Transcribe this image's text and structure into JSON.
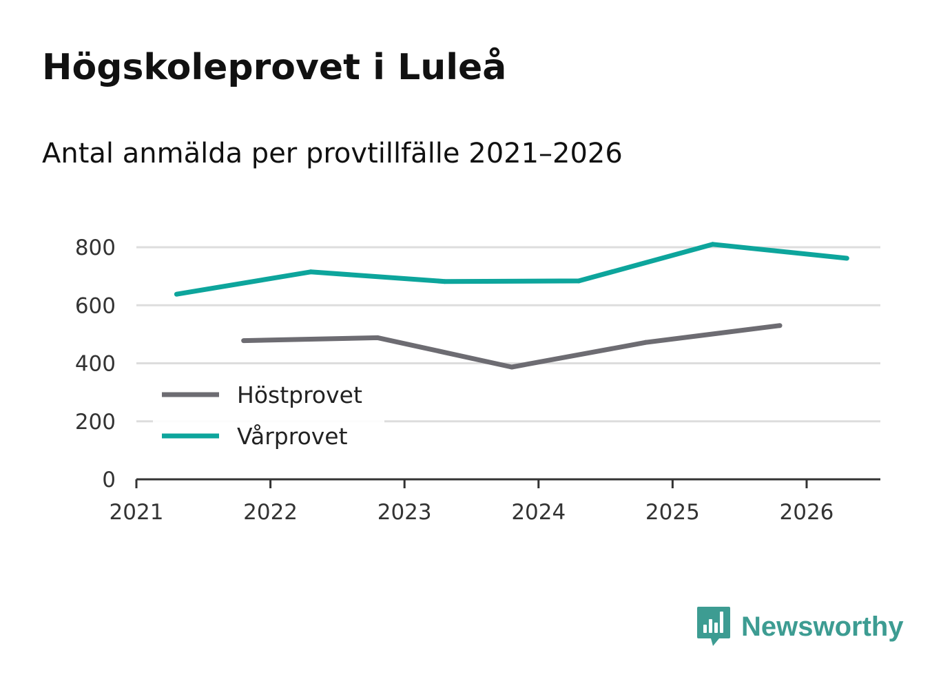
{
  "chart_data": {
    "type": "line",
    "title": "Högskoleprovet i Luleå",
    "subtitle": "Antal anmälda per provtillfälle 2021–2026",
    "xlabel": "",
    "ylabel": "",
    "xlim": [
      2021,
      2026.55
    ],
    "ylim": [
      0,
      800
    ],
    "x_ticks": [
      "2021",
      "2022",
      "2023",
      "2024",
      "2025",
      "2026"
    ],
    "y_ticks": [
      "0",
      "200",
      "400",
      "600",
      "800"
    ],
    "grid": true,
    "legend_position": "bottom-left",
    "series": [
      {
        "name": "Höstprovet",
        "color": "#6d6c72",
        "x": [
          2021.8,
          2022.8,
          2023.8,
          2024.8,
          2025.8
        ],
        "values": [
          478,
          488,
          387,
          472,
          530
        ]
      },
      {
        "name": "Vårprovet",
        "color": "#0da59c",
        "x": [
          2021.3,
          2022.3,
          2023.3,
          2024.3,
          2025.3,
          2026.3
        ],
        "values": [
          638,
          715,
          682,
          684,
          810,
          762
        ]
      }
    ]
  },
  "brand": {
    "name": "Newsworthy",
    "icon": "newsworthy-logo-icon",
    "color": "#3d9c92"
  }
}
